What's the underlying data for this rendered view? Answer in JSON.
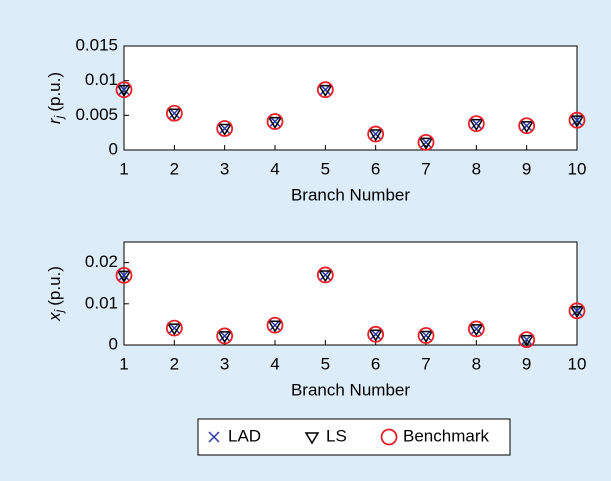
{
  "chart_data": [
    {
      "type": "scatter",
      "ylabel_var": "r",
      "ylabel_sub": "j",
      "ylabel_unit": "(p.u.)",
      "xlabel": "Branch Number",
      "x": [
        1,
        2,
        3,
        4,
        5,
        6,
        7,
        8,
        9,
        10
      ],
      "xlim": [
        1,
        10
      ],
      "xticks": [
        1,
        2,
        3,
        4,
        5,
        6,
        7,
        8,
        9,
        10
      ],
      "ylim": [
        0,
        0.015
      ],
      "yticks": [
        0,
        0.005,
        0.01,
        0.015
      ],
      "series": [
        {
          "name": "LAD",
          "color": "#2b3aa8",
          "marker": "x",
          "values": [
            0.0087,
            0.0053,
            0.0031,
            0.0041,
            0.0087,
            0.0023,
            0.0011,
            0.0038,
            0.0035,
            0.0043
          ]
        },
        {
          "name": "LS",
          "color": "#000000",
          "marker": "v",
          "values": [
            0.0087,
            0.0053,
            0.0031,
            0.0041,
            0.0087,
            0.0023,
            0.0011,
            0.0038,
            0.0035,
            0.0043
          ]
        },
        {
          "name": "Benchmark",
          "color": "#e8202a",
          "marker": "o",
          "values": [
            0.0087,
            0.0053,
            0.0031,
            0.0041,
            0.0087,
            0.0023,
            0.0011,
            0.0038,
            0.0035,
            0.0043
          ]
        }
      ]
    },
    {
      "type": "scatter",
      "ylabel_var": "x",
      "ylabel_sub": "j",
      "ylabel_unit": "(p.u.)",
      "xlabel": "Branch Number",
      "x": [
        1,
        2,
        3,
        4,
        5,
        6,
        7,
        8,
        9,
        10
      ],
      "xlim": [
        1,
        10
      ],
      "xticks": [
        1,
        2,
        3,
        4,
        5,
        6,
        7,
        8,
        9,
        10
      ],
      "ylim": [
        0,
        0.025
      ],
      "yticks": [
        0,
        0.01,
        0.02
      ],
      "series": [
        {
          "name": "LAD",
          "color": "#2b3aa8",
          "marker": "x",
          "values": [
            0.0169,
            0.0041,
            0.0022,
            0.0048,
            0.017,
            0.0026,
            0.0023,
            0.0039,
            0.0013,
            0.0083
          ]
        },
        {
          "name": "LS",
          "color": "#000000",
          "marker": "v",
          "values": [
            0.0169,
            0.0041,
            0.0022,
            0.0048,
            0.017,
            0.0026,
            0.0023,
            0.0039,
            0.0013,
            0.0083
          ]
        },
        {
          "name": "Benchmark",
          "color": "#e8202a",
          "marker": "o",
          "values": [
            0.0169,
            0.0041,
            0.0022,
            0.0048,
            0.017,
            0.0026,
            0.0023,
            0.0039,
            0.0013,
            0.0083
          ]
        }
      ]
    }
  ]
}
